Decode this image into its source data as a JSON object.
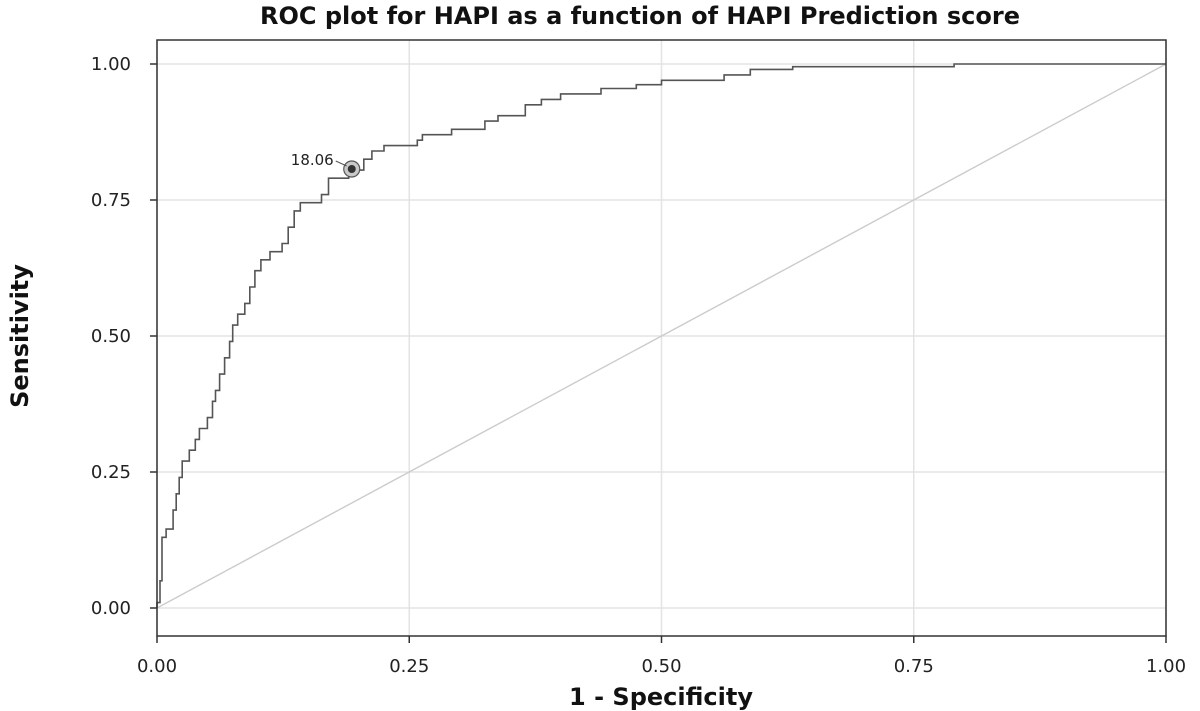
{
  "chart_data": {
    "type": "line",
    "title": "ROC plot for HAPI as a function of HAPI Prediction score",
    "xlabel": "1 - Specificity",
    "ylabel": "Sensitivity",
    "xlim": [
      0,
      1
    ],
    "ylim": [
      0,
      1
    ],
    "x_ticks": [
      "0.00",
      "0.25",
      "0.50",
      "0.75",
      "1.00"
    ],
    "y_ticks": [
      "0.00",
      "0.25",
      "0.50",
      "0.75",
      "1.00"
    ],
    "grid": true,
    "legend": "none",
    "series": [
      {
        "style": "step",
        "color": "#555555",
        "points": [
          [
            0.0,
            0.0
          ],
          [
            0.0,
            0.01
          ],
          [
            0.003,
            0.01
          ],
          [
            0.003,
            0.05
          ],
          [
            0.005,
            0.05
          ],
          [
            0.005,
            0.13
          ],
          [
            0.009,
            0.13
          ],
          [
            0.009,
            0.145
          ],
          [
            0.016,
            0.145
          ],
          [
            0.016,
            0.18
          ],
          [
            0.019,
            0.18
          ],
          [
            0.019,
            0.21
          ],
          [
            0.022,
            0.21
          ],
          [
            0.022,
            0.24
          ],
          [
            0.025,
            0.24
          ],
          [
            0.025,
            0.27
          ],
          [
            0.032,
            0.27
          ],
          [
            0.032,
            0.29
          ],
          [
            0.038,
            0.29
          ],
          [
            0.038,
            0.31
          ],
          [
            0.042,
            0.31
          ],
          [
            0.042,
            0.33
          ],
          [
            0.05,
            0.33
          ],
          [
            0.05,
            0.35
          ],
          [
            0.055,
            0.35
          ],
          [
            0.055,
            0.38
          ],
          [
            0.058,
            0.38
          ],
          [
            0.058,
            0.4
          ],
          [
            0.062,
            0.4
          ],
          [
            0.062,
            0.43
          ],
          [
            0.067,
            0.43
          ],
          [
            0.067,
            0.46
          ],
          [
            0.072,
            0.46
          ],
          [
            0.072,
            0.49
          ],
          [
            0.075,
            0.49
          ],
          [
            0.075,
            0.52
          ],
          [
            0.08,
            0.52
          ],
          [
            0.08,
            0.54
          ],
          [
            0.087,
            0.54
          ],
          [
            0.087,
            0.56
          ],
          [
            0.092,
            0.56
          ],
          [
            0.092,
            0.59
          ],
          [
            0.097,
            0.59
          ],
          [
            0.097,
            0.62
          ],
          [
            0.103,
            0.62
          ],
          [
            0.103,
            0.64
          ],
          [
            0.112,
            0.64
          ],
          [
            0.112,
            0.655
          ],
          [
            0.124,
            0.655
          ],
          [
            0.124,
            0.67
          ],
          [
            0.13,
            0.67
          ],
          [
            0.13,
            0.7
          ],
          [
            0.136,
            0.7
          ],
          [
            0.136,
            0.73
          ],
          [
            0.142,
            0.73
          ],
          [
            0.142,
            0.745
          ],
          [
            0.163,
            0.745
          ],
          [
            0.163,
            0.76
          ],
          [
            0.17,
            0.76
          ],
          [
            0.17,
            0.79
          ],
          [
            0.19,
            0.79
          ],
          [
            0.19,
            0.805
          ],
          [
            0.205,
            0.805
          ],
          [
            0.205,
            0.825
          ],
          [
            0.213,
            0.825
          ],
          [
            0.213,
            0.84
          ],
          [
            0.225,
            0.84
          ],
          [
            0.225,
            0.85
          ],
          [
            0.258,
            0.85
          ],
          [
            0.258,
            0.86
          ],
          [
            0.263,
            0.86
          ],
          [
            0.263,
            0.87
          ],
          [
            0.292,
            0.87
          ],
          [
            0.292,
            0.88
          ],
          [
            0.325,
            0.88
          ],
          [
            0.325,
            0.895
          ],
          [
            0.338,
            0.895
          ],
          [
            0.338,
            0.905
          ],
          [
            0.365,
            0.905
          ],
          [
            0.365,
            0.925
          ],
          [
            0.381,
            0.925
          ],
          [
            0.381,
            0.935
          ],
          [
            0.4,
            0.935
          ],
          [
            0.4,
            0.945
          ],
          [
            0.44,
            0.945
          ],
          [
            0.44,
            0.955
          ],
          [
            0.475,
            0.955
          ],
          [
            0.475,
            0.962
          ],
          [
            0.5,
            0.962
          ],
          [
            0.5,
            0.97
          ],
          [
            0.562,
            0.97
          ],
          [
            0.562,
            0.98
          ],
          [
            0.588,
            0.98
          ],
          [
            0.588,
            0.99
          ],
          [
            0.63,
            0.99
          ],
          [
            0.63,
            0.995
          ],
          [
            0.79,
            0.995
          ],
          [
            0.79,
            1.0
          ],
          [
            1.0,
            1.0
          ]
        ]
      },
      {
        "style": "reference",
        "color": "#cccccc",
        "points": [
          [
            0,
            0
          ],
          [
            1,
            1
          ]
        ]
      }
    ],
    "annotations": [
      {
        "label": "18.06",
        "x": 0.193,
        "y": 0.807
      }
    ]
  }
}
